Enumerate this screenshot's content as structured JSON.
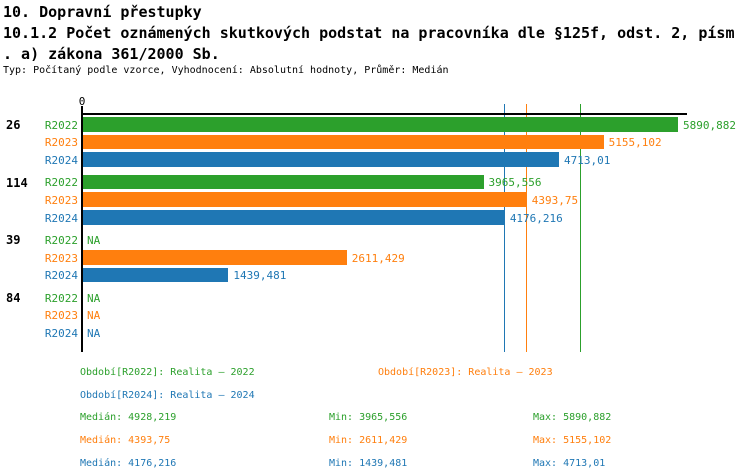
{
  "header": {
    "section_title": "10. Dopravní přestupky",
    "indicator_title_line1": "10.1.2 Počet oznámených skutkových podstat na pracovníka dle §125f, odst. 2, písm",
    "indicator_title_line2": ". a) zákona 361/2000 Sb.",
    "meta": "Typ: Počítaný podle vzorce, Vyhodnocení: Absolutní hodnoty, Průměr: Medián"
  },
  "colors": {
    "r2022": "#2ca02c",
    "r2023": "#ff7f0e",
    "r2024": "#1f77b4",
    "axis": "#000000",
    "background": "#ffffff"
  },
  "chart_data": {
    "type": "bar",
    "orientation": "horizontal",
    "value_axis": {
      "zero_label": "0",
      "min": 0,
      "max": 5970,
      "decimal_separator": ","
    },
    "series": [
      {
        "id": "R2022",
        "label": "R2022",
        "color": "#2ca02c",
        "median": 4928.219,
        "min": 3965.556,
        "max": 5890.882
      },
      {
        "id": "R2023",
        "label": "R2023",
        "color": "#ff7f0e",
        "median": 4393.75,
        "min": 2611.429,
        "max": 5155.102
      },
      {
        "id": "R2024",
        "label": "R2024",
        "color": "#1f77b4",
        "median": 4176.216,
        "min": 1439.481,
        "max": 4713.01
      }
    ],
    "reference_lines": [
      {
        "series": "R2022",
        "value": 4928.219,
        "color": "#2ca02c"
      },
      {
        "series": "R2023",
        "value": 4393.75,
        "color": "#ff7f0e"
      },
      {
        "series": "R2024",
        "value": 4176.216,
        "color": "#1f77b4"
      }
    ],
    "groups": [
      {
        "label": "26",
        "values": [
          {
            "series": "R2022",
            "value": 5890.882,
            "display": "5890,882"
          },
          {
            "series": "R2023",
            "value": 5155.102,
            "display": "5155,102"
          },
          {
            "series": "R2024",
            "value": 4713.01,
            "display": "4713,01"
          }
        ]
      },
      {
        "label": "114",
        "values": [
          {
            "series": "R2022",
            "value": 3965.556,
            "display": "3965,556"
          },
          {
            "series": "R2023",
            "value": 4393.75,
            "display": "4393,75"
          },
          {
            "series": "R2024",
            "value": 4176.216,
            "display": "4176,216"
          }
        ]
      },
      {
        "label": "39",
        "values": [
          {
            "series": "R2022",
            "value": null,
            "display": "NA"
          },
          {
            "series": "R2023",
            "value": 2611.429,
            "display": "2611,429"
          },
          {
            "series": "R2024",
            "value": 1439.481,
            "display": "1439,481"
          }
        ]
      },
      {
        "label": "84",
        "values": [
          {
            "series": "R2022",
            "value": null,
            "display": "NA"
          },
          {
            "series": "R2023",
            "value": null,
            "display": "NA"
          },
          {
            "series": "R2024",
            "value": null,
            "display": "NA"
          }
        ]
      }
    ]
  },
  "legend": {
    "periods": [
      {
        "series": "R2022",
        "label": "Období[R2022]: Realita – 2022"
      },
      {
        "series": "R2023",
        "label": "Období[R2023]: Realita – 2023"
      },
      {
        "series": "R2024",
        "label": "Období[R2024]: Realita – 2024"
      }
    ],
    "stats": [
      {
        "series": "R2022",
        "median": "Medián: 4928,219",
        "min": "Min: 3965,556",
        "max": "Max: 5890,882"
      },
      {
        "series": "R2023",
        "median": "Medián: 4393,75",
        "min": "Min: 2611,429",
        "max": "Max: 5155,102"
      },
      {
        "series": "R2024",
        "median": "Medián: 4176,216",
        "min": "Min: 1439,481",
        "max": "Max: 4713,01"
      }
    ]
  }
}
